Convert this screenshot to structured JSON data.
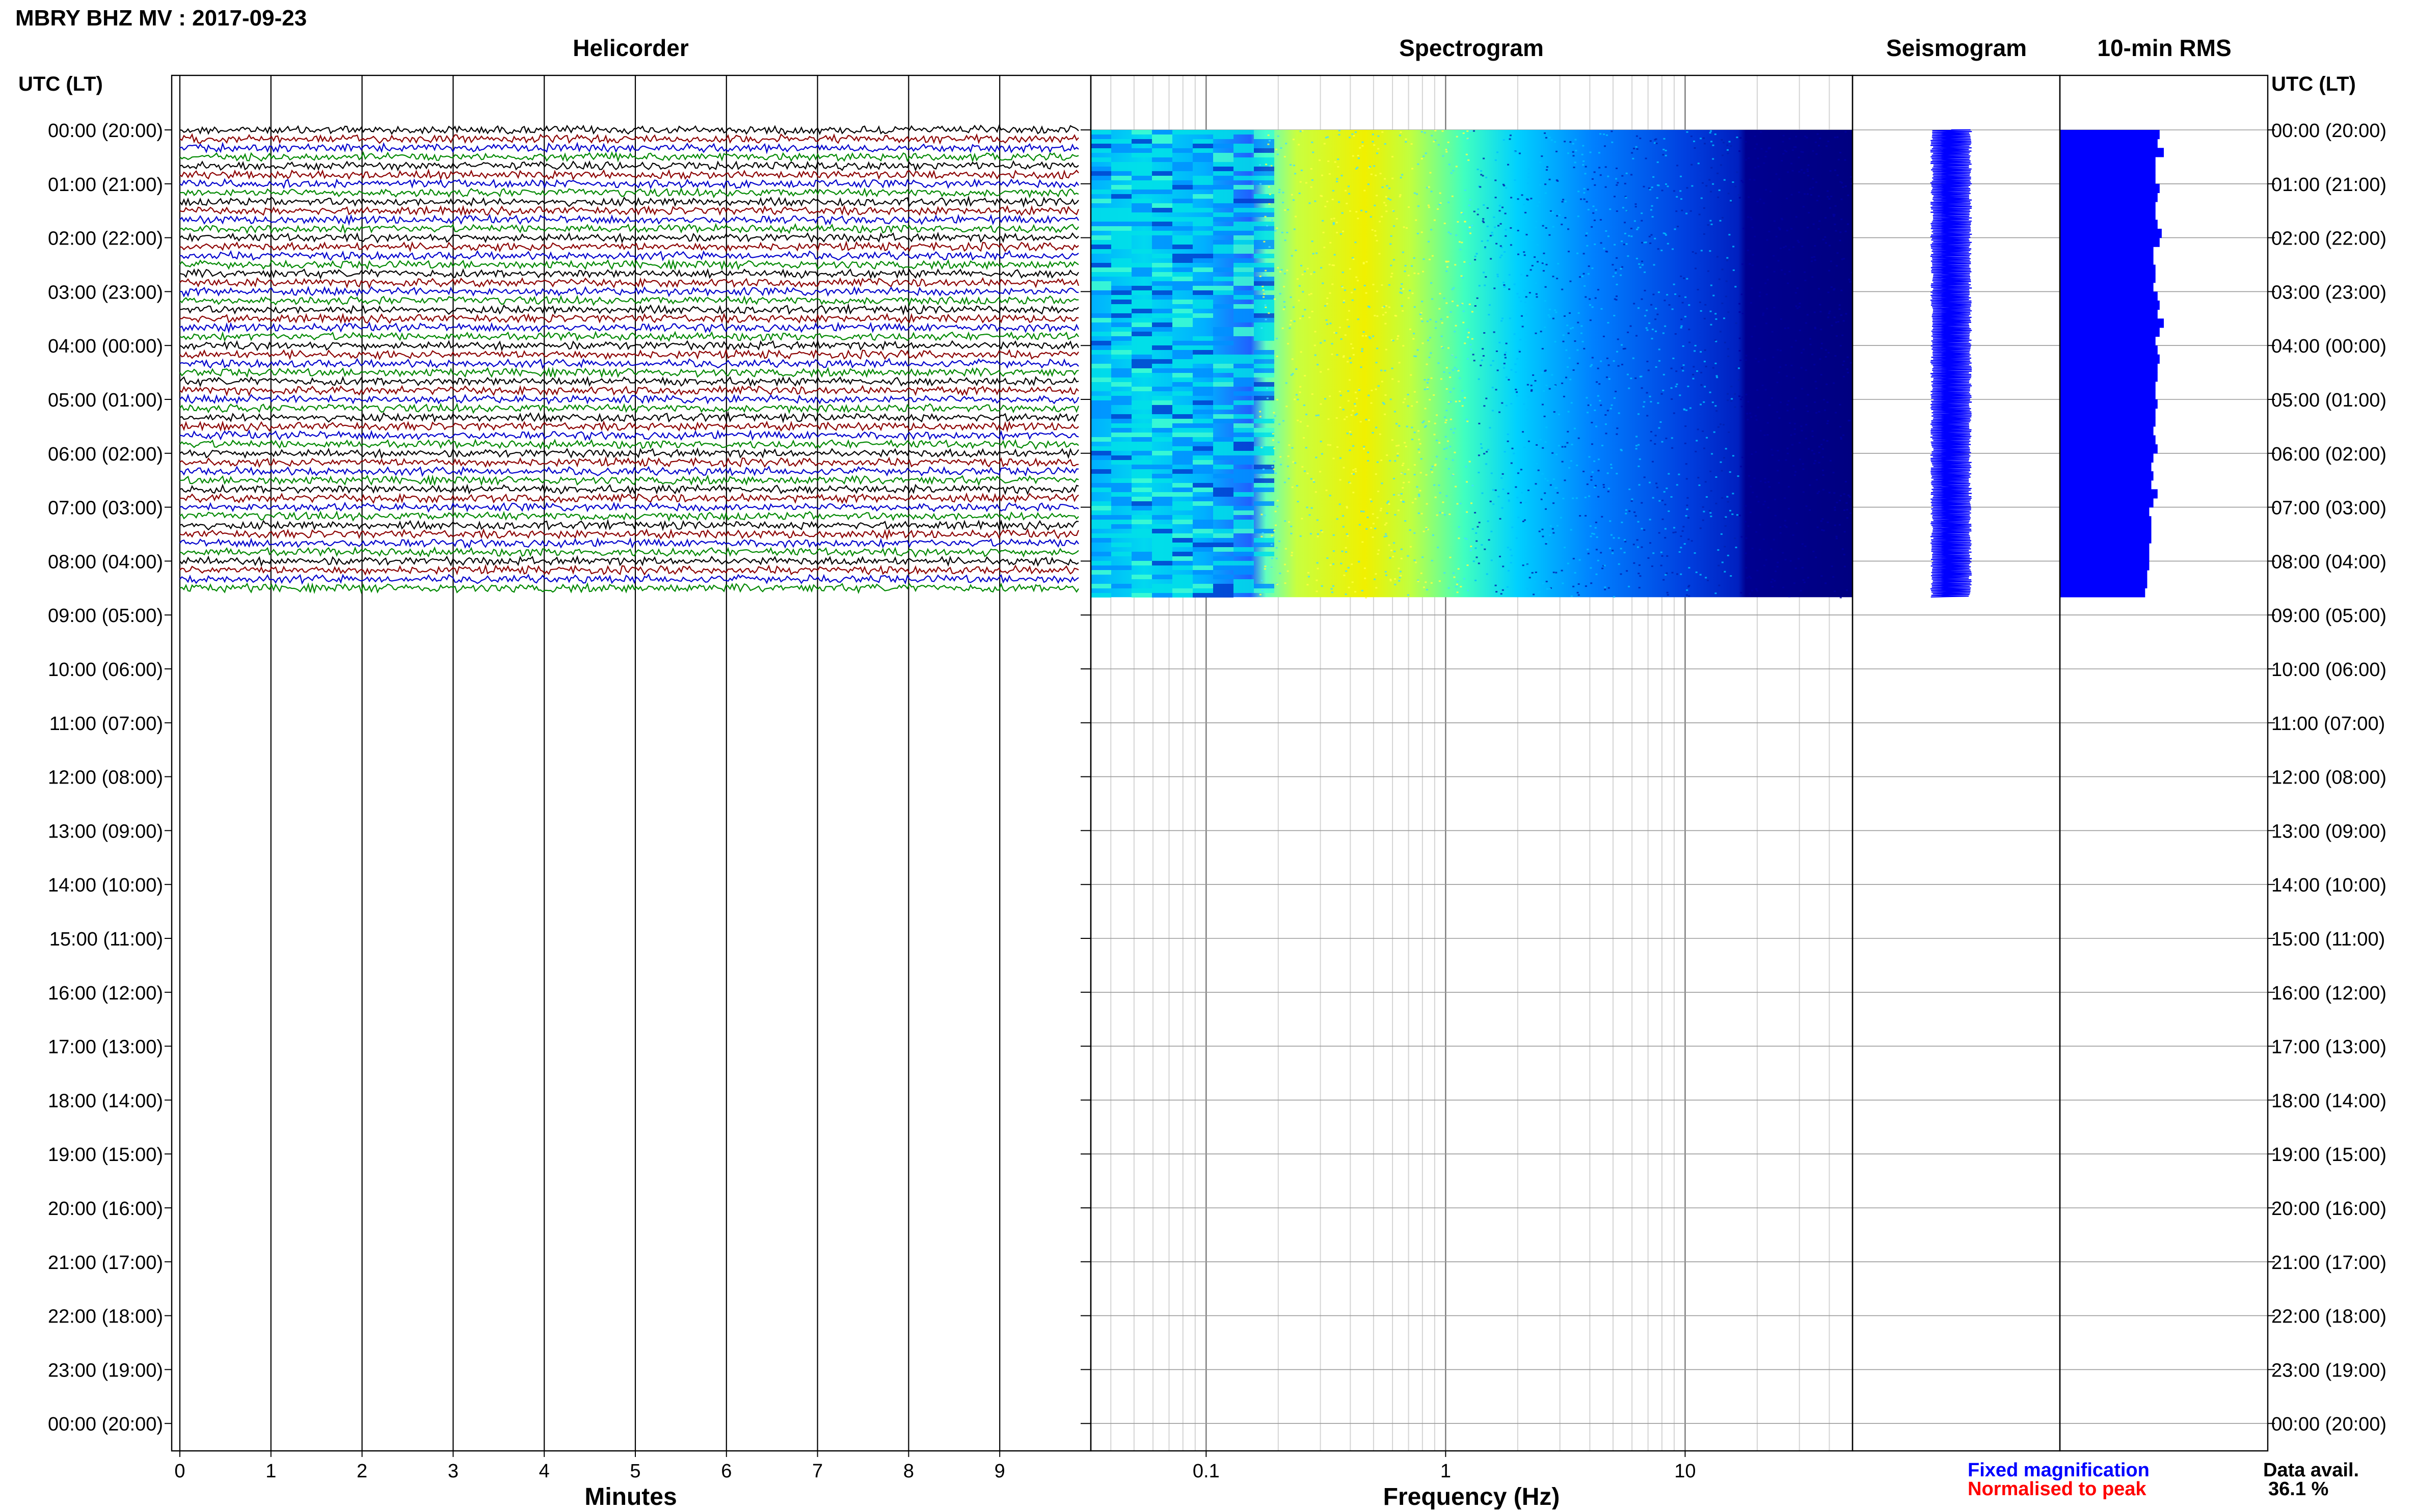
{
  "page_title": "MBRY BHZ MV : 2017-09-23",
  "panel_titles": {
    "helicorder": "Helicorder",
    "spectrogram": "Spectrogram",
    "seismogram": "Seismogram",
    "rms": "10-min RMS"
  },
  "axis_header_left": "UTC (LT)",
  "axis_header_right": "UTC (LT)",
  "helicorder_xlabel": "Minutes",
  "spectrogram_xlabel": "Frequency (Hz)",
  "legend": {
    "fixed": "Fixed magnification",
    "normalised": "Normalised to peak",
    "data_avail_label": "Data avail.",
    "data_avail_value": "36.1 %"
  },
  "colors": {
    "trace_cycle": [
      "#000000",
      "#8b0000",
      "#0000cc",
      "#008800"
    ],
    "seismogram": "#0000ff",
    "rms_bar": "#0000ff",
    "legend_fixed": "#0000ff",
    "legend_normalised": "#ff0000",
    "spectrogram_colormap": [
      "#00008b",
      "#0000ff",
      "#0080ff",
      "#00ffff",
      "#80ff80",
      "#ffff00"
    ]
  },
  "chart_data": [
    {
      "type": "line",
      "name": "helicorder",
      "y_tick_labels": [
        "00:00 (20:00)",
        "01:00 (21:00)",
        "02:00 (22:00)",
        "03:00 (23:00)",
        "04:00 (00:00)",
        "05:00 (01:00)",
        "06:00 (02:00)",
        "07:00 (03:00)",
        "08:00 (04:00)",
        "09:00 (05:00)",
        "10:00 (06:00)",
        "11:00 (07:00)",
        "12:00 (08:00)",
        "13:00 (09:00)",
        "14:00 (10:00)",
        "15:00 (11:00)",
        "16:00 (12:00)",
        "17:00 (13:00)",
        "18:00 (14:00)",
        "19:00 (15:00)",
        "20:00 (16:00)",
        "21:00 (17:00)",
        "22:00 (18:00)",
        "23:00 (19:00)",
        "00:00 (20:00)"
      ],
      "x_ticks": [
        0,
        1,
        2,
        3,
        4,
        5,
        6,
        7,
        8,
        9
      ],
      "xlim": [
        0,
        10
      ],
      "ylim_hours": [
        0,
        24
      ],
      "data_end_hours": 8.67,
      "traces_per_hour": 6
    },
    {
      "type": "heatmap",
      "name": "spectrogram",
      "x_scale": "log",
      "xlim": [
        0.033,
        50
      ],
      "x_tick_labels": [
        {
          "value": 0.1,
          "label": "0.1"
        },
        {
          "value": 1,
          "label": "1"
        },
        {
          "value": 10,
          "label": "10"
        }
      ],
      "ylim_hours": [
        0,
        24
      ],
      "data_end_hours": 8.67,
      "peak_energy_band_hz": [
        0.15,
        1.0
      ]
    },
    {
      "type": "line",
      "name": "seismogram",
      "ylim_hours": [
        0,
        24
      ],
      "data_start_hours": 0,
      "data_end_hours": 8.67,
      "amplitude_relative": 0.2
    },
    {
      "type": "bar",
      "name": "rms",
      "ylim_hours": [
        0,
        24
      ],
      "bin_minutes": 10,
      "values_relative": [
        0.48,
        0.47,
        0.5,
        0.46,
        0.46,
        0.46,
        0.48,
        0.47,
        0.46,
        0.46,
        0.47,
        0.49,
        0.48,
        0.45,
        0.45,
        0.46,
        0.46,
        0.45,
        0.47,
        0.48,
        0.47,
        0.5,
        0.48,
        0.46,
        0.47,
        0.48,
        0.47,
        0.47,
        0.46,
        0.46,
        0.47,
        0.46,
        0.46,
        0.45,
        0.46,
        0.47,
        0.45,
        0.44,
        0.45,
        0.44,
        0.47,
        0.45,
        0.43,
        0.44,
        0.44,
        0.44,
        0.43,
        0.43,
        0.43,
        0.42,
        0.42,
        0.41
      ]
    }
  ]
}
